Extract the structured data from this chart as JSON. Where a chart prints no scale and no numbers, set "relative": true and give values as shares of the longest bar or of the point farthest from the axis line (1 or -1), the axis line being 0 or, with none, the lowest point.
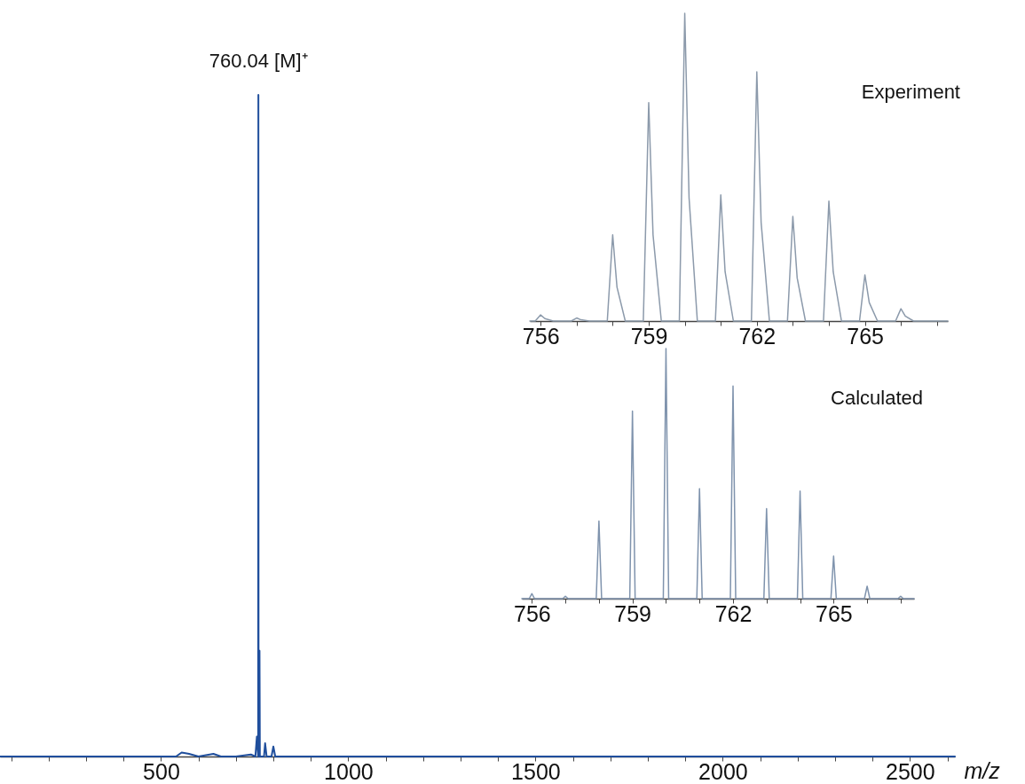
{
  "chart_data": [
    {
      "type": "line",
      "relative": true,
      "xlabel": "m/z",
      "xlim": [
        70,
        2620
      ],
      "xticks": [
        {
          "value": 100,
          "label": null
        },
        {
          "value": 200,
          "label": null
        },
        {
          "value": 300,
          "label": null
        },
        {
          "value": 400,
          "label": null
        },
        500,
        {
          "value": 600,
          "label": null
        },
        {
          "value": 700,
          "label": null
        },
        {
          "value": 800,
          "label": null
        },
        {
          "value": 900,
          "label": null
        },
        1000,
        {
          "value": 1100,
          "label": null
        },
        {
          "value": 1200,
          "label": null
        },
        {
          "value": 1300,
          "label": null
        },
        {
          "value": 1400,
          "label": null
        },
        1500,
        {
          "value": 1600,
          "label": null
        },
        {
          "value": 1700,
          "label": null
        },
        {
          "value": 1800,
          "label": null
        },
        {
          "value": 1900,
          "label": null
        },
        2000,
        {
          "value": 2100,
          "label": null
        },
        {
          "value": 2200,
          "label": null
        },
        {
          "value": 2300,
          "label": null
        },
        {
          "value": 2400,
          "label": null
        },
        2500,
        {
          "value": 2600,
          "label": null
        }
      ],
      "annotations": [
        {
          "text": "760.04 [M]⁺",
          "x": 760.04,
          "y": 1
        }
      ],
      "series": [
        {
          "color": "#1f4e9c",
          "x": [
            70,
            540,
            555,
            575,
            600,
            640,
            660,
            700,
            740,
            752,
            756,
            759.5,
            760,
            760.5,
            762,
            763,
            764,
            775,
            778,
            782,
            795,
            800,
            805,
            830,
            2620
          ],
          "values": [
            0,
            0,
            0.006,
            0.004,
            0,
            0.004,
            0,
            0,
            0.003,
            0,
            0.03,
            0,
            1,
            0,
            0,
            0.16,
            0,
            0,
            0.02,
            0,
            0,
            0.015,
            0,
            0,
            0
          ]
        }
      ]
    },
    {
      "type": "line",
      "relative": true,
      "title": "Experiment",
      "xlim": [
        755.7,
        767.3
      ],
      "xticks": [
        756,
        {
          "value": 757,
          "label": null
        },
        {
          "value": 758,
          "label": null
        },
        759,
        {
          "value": 760,
          "label": null
        },
        {
          "value": 761,
          "label": null
        },
        762,
        {
          "value": 763,
          "label": null
        },
        {
          "value": 764,
          "label": null
        },
        765,
        {
          "value": 766,
          "label": null
        },
        {
          "value": 767,
          "label": null
        }
      ],
      "series": [
        {
          "color": "#8c9aab",
          "x": [
            755.7,
            755.85,
            756,
            756.12,
            756.35,
            756.85,
            757,
            757.12,
            757.35,
            757.85,
            758,
            758.12,
            758.35,
            758.85,
            759,
            759.12,
            759.35,
            759.85,
            760,
            760.12,
            760.35,
            760.85,
            761,
            761.12,
            761.35,
            761.85,
            762,
            762.12,
            762.35,
            762.85,
            763,
            763.12,
            763.35,
            763.85,
            764,
            764.12,
            764.35,
            764.85,
            765,
            765.12,
            765.35,
            765.85,
            766,
            766.12,
            766.35,
            767.3
          ],
          "values": [
            0,
            0,
            0.02,
            0.008,
            0,
            0,
            0.01,
            0.004,
            0,
            0,
            0.28,
            0.11,
            0,
            0,
            0.71,
            0.28,
            0,
            0,
            1,
            0.4,
            0,
            0,
            0.41,
            0.16,
            0,
            0,
            0.81,
            0.32,
            0,
            0,
            0.34,
            0.14,
            0,
            0,
            0.39,
            0.16,
            0,
            0,
            0.15,
            0.06,
            0,
            0,
            0.04,
            0.016,
            0,
            0
          ]
        }
      ]
    },
    {
      "type": "line",
      "relative": true,
      "title": "Calculated",
      "xlim": [
        755.7,
        767.4
      ],
      "xticks": [
        756,
        {
          "value": 757,
          "label": null
        },
        {
          "value": 758,
          "label": null
        },
        759,
        {
          "value": 760,
          "label": null
        },
        {
          "value": 761,
          "label": null
        },
        762,
        {
          "value": 763,
          "label": null
        },
        {
          "value": 764,
          "label": null
        },
        765,
        {
          "value": 766,
          "label": null
        },
        {
          "value": 767,
          "label": null
        }
      ],
      "series": [
        {
          "color": "#7f93ad",
          "x": [
            755.7,
            755.92,
            756,
            756.08,
            756.92,
            757,
            757.08,
            757.92,
            758,
            758.08,
            758.92,
            759,
            759.08,
            759.92,
            760,
            760.08,
            760.92,
            761,
            761.08,
            761.92,
            762,
            762.08,
            762.92,
            763,
            763.08,
            763.92,
            764,
            764.08,
            764.92,
            765,
            765.08,
            765.92,
            766,
            766.08,
            766.92,
            767,
            767.08,
            767.4
          ],
          "values": [
            0,
            0,
            0.02,
            0,
            0,
            0.01,
            0,
            0,
            0.31,
            0,
            0,
            0.75,
            0,
            0,
            1,
            0,
            0,
            0.44,
            0,
            0,
            0.85,
            0,
            0,
            0.36,
            0,
            0,
            0.43,
            0,
            0,
            0.17,
            0,
            0,
            0.05,
            0,
            0,
            0.01,
            0,
            0
          ]
        }
      ]
    }
  ]
}
